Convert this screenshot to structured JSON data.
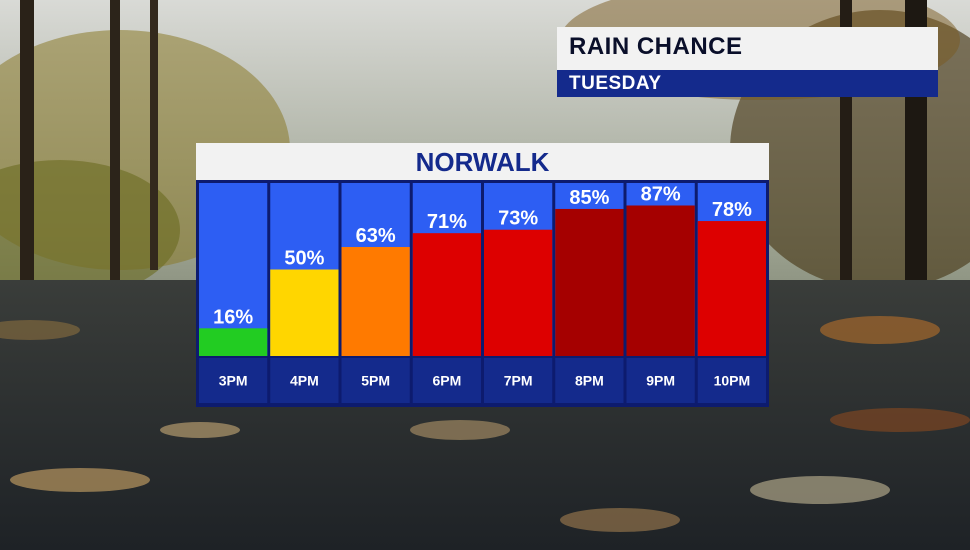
{
  "header": {
    "title": "RAIN CHANCE",
    "day": "TUESDAY"
  },
  "location": "NORWALK",
  "colors": {
    "column_bg": "#2d5ef3",
    "frame": "#0d1b6e",
    "label_row": "#142a8c",
    "low": "#22cc22",
    "moderate": "#ffd600",
    "elevated": "#ff7a00",
    "high": "#dd0000",
    "very_high": "#a50000"
  },
  "chart_data": {
    "type": "bar",
    "title": "RAIN CHANCE",
    "subtitle": "TUESDAY",
    "categories": [
      "3PM",
      "4PM",
      "5PM",
      "6PM",
      "7PM",
      "8PM",
      "9PM",
      "10PM"
    ],
    "values": [
      16,
      50,
      63,
      71,
      73,
      85,
      87,
      78
    ],
    "value_labels": [
      "16%",
      "50%",
      "63%",
      "71%",
      "73%",
      "85%",
      "87%",
      "78%"
    ],
    "bar_colors": [
      "#22cc22",
      "#ffd600",
      "#ff7a00",
      "#dd0000",
      "#dd0000",
      "#a50000",
      "#a50000",
      "#dd0000"
    ],
    "ylim": [
      0,
      100
    ],
    "grid": false,
    "legend": "none"
  }
}
